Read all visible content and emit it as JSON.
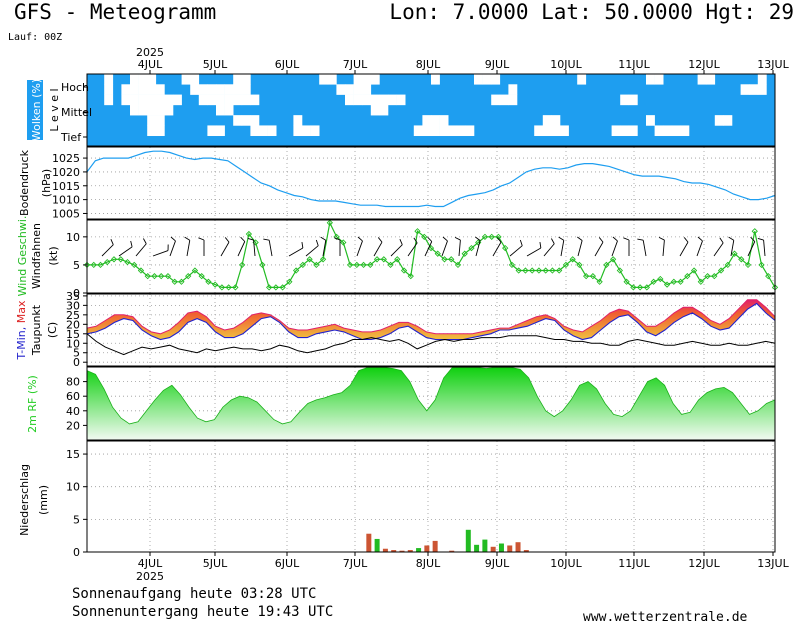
{
  "header": {
    "title": "GFS - Meteogramm",
    "coords": "Lon: 7.0000  Lat: 50.0000  Hgt: 29",
    "run": "Lauf: 00Z"
  },
  "footer": {
    "sunrise": "Sonnenaufgang heute 03:28 UTC",
    "sunset": "Sonnenuntergang heute 19:43 UTC",
    "credit": "www.wetterzentrale.de"
  },
  "colors": {
    "cloud": "#1e9ef0",
    "pressure": "#1e9ef0",
    "wind": "#22bb22",
    "tmin": "#2222cc",
    "tmax": "#dd2222",
    "tmax_fill_low": "#f0c040",
    "tmax_fill_high": "#e0206a",
    "rh": "#22cc22",
    "precip_conv": "#22bb22",
    "precip_total": "#cc5533"
  },
  "chart_data": [
    {
      "type": "heatmap",
      "id": "clouds",
      "ylabel": "Wolken (%)",
      "ylabel2": "L e v e l",
      "levels": [
        "Hoch",
        "Mittel",
        "Tief"
      ],
      "x_ticks": [
        "4JUL",
        "5JUL",
        "6JUL",
        "7JUL",
        "8JUL",
        "9JUL",
        "10JUL",
        "11JUL",
        "12JUL",
        "13JUL"
      ],
      "x_year": "2025",
      "rows": [
        [
          1,
          1,
          0,
          1,
          1,
          0,
          0,
          0,
          1,
          1,
          1,
          0,
          0,
          1,
          1,
          1,
          1,
          0,
          0,
          1,
          1,
          1,
          1,
          1,
          1,
          1,
          1,
          0,
          0,
          1,
          1,
          0,
          0,
          0,
          1,
          1,
          1,
          1,
          1,
          1,
          0,
          1,
          1,
          1,
          1,
          0,
          0,
          0,
          1,
          1,
          1,
          1,
          1,
          1,
          1,
          1,
          1,
          0,
          1,
          1,
          1,
          1,
          1,
          1,
          1,
          0,
          0,
          1,
          1,
          1,
          1,
          0,
          0,
          1,
          1,
          1,
          1,
          1,
          0,
          1
        ],
        [
          1,
          1,
          0,
          1,
          0,
          0,
          0,
          0,
          0,
          1,
          1,
          1,
          0,
          0,
          0,
          0,
          0,
          0,
          0,
          1,
          1,
          1,
          1,
          1,
          1,
          1,
          1,
          1,
          1,
          0,
          0,
          0,
          0,
          1,
          1,
          1,
          1,
          1,
          1,
          1,
          1,
          1,
          1,
          1,
          1,
          1,
          1,
          1,
          1,
          0,
          1,
          1,
          1,
          1,
          1,
          1,
          1,
          1,
          1,
          1,
          1,
          1,
          1,
          1,
          1,
          1,
          1,
          1,
          1,
          1,
          1,
          1,
          1,
          1,
          1,
          1,
          0,
          0,
          0,
          1
        ],
        [
          1,
          1,
          0,
          1,
          0,
          0,
          0,
          0,
          0,
          0,
          0,
          1,
          1,
          0,
          0,
          0,
          0,
          0,
          0,
          0,
          1,
          1,
          1,
          1,
          1,
          1,
          1,
          1,
          1,
          1,
          0,
          0,
          0,
          0,
          0,
          0,
          0,
          1,
          1,
          1,
          1,
          1,
          1,
          1,
          1,
          1,
          1,
          0,
          0,
          0,
          1,
          1,
          1,
          1,
          1,
          1,
          1,
          1,
          1,
          1,
          1,
          1,
          0,
          0,
          1,
          1,
          1,
          1,
          1,
          1,
          1,
          1,
          1,
          1,
          1,
          1,
          1,
          1,
          1,
          1
        ],
        [
          1,
          1,
          1,
          1,
          1,
          0,
          0,
          0,
          0,
          0,
          1,
          1,
          1,
          1,
          1,
          0,
          0,
          1,
          1,
          1,
          1,
          1,
          1,
          1,
          1,
          1,
          1,
          1,
          1,
          1,
          1,
          1,
          1,
          0,
          0,
          1,
          1,
          1,
          1,
          1,
          1,
          1,
          1,
          1,
          1,
          1,
          1,
          1,
          1,
          1,
          1,
          1,
          1,
          1,
          1,
          1,
          1,
          1,
          1,
          1,
          1,
          1,
          1,
          1,
          1,
          1,
          1,
          1,
          1,
          1,
          1,
          1,
          1,
          1,
          1,
          1,
          1,
          1,
          1,
          1
        ],
        [
          1,
          1,
          1,
          1,
          1,
          1,
          1,
          0,
          0,
          1,
          1,
          1,
          1,
          1,
          1,
          1,
          1,
          0,
          0,
          0,
          1,
          1,
          1,
          1,
          0,
          1,
          1,
          1,
          1,
          1,
          1,
          1,
          1,
          1,
          1,
          1,
          1,
          1,
          1,
          0,
          0,
          0,
          1,
          1,
          1,
          1,
          1,
          1,
          1,
          1,
          1,
          1,
          1,
          0,
          0,
          1,
          1,
          1,
          1,
          1,
          1,
          1,
          1,
          1,
          1,
          0,
          1,
          1,
          1,
          1,
          1,
          1,
          1,
          0,
          0,
          1,
          1,
          1,
          1,
          1
        ],
        [
          1,
          1,
          1,
          1,
          1,
          1,
          1,
          0,
          0,
          1,
          1,
          1,
          1,
          1,
          0,
          0,
          1,
          1,
          1,
          0,
          0,
          0,
          1,
          1,
          0,
          0,
          0,
          1,
          1,
          1,
          1,
          1,
          1,
          1,
          1,
          1,
          1,
          1,
          0,
          0,
          0,
          0,
          0,
          0,
          0,
          1,
          1,
          1,
          1,
          1,
          1,
          1,
          0,
          0,
          0,
          0,
          1,
          1,
          1,
          1,
          1,
          0,
          0,
          0,
          1,
          1,
          0,
          0,
          0,
          0,
          1,
          1,
          1,
          1,
          1,
          1,
          1,
          1,
          1,
          1
        ],
        [
          1,
          1,
          1,
          1,
          1,
          1,
          1,
          1,
          1,
          1,
          1,
          1,
          1,
          1,
          1,
          1,
          1,
          1,
          1,
          1,
          1,
          1,
          1,
          1,
          1,
          1,
          1,
          1,
          1,
          1,
          1,
          1,
          1,
          1,
          1,
          1,
          1,
          1,
          1,
          1,
          1,
          1,
          1,
          1,
          1,
          1,
          1,
          1,
          1,
          1,
          1,
          1,
          1,
          1,
          1,
          1,
          1,
          1,
          1,
          1,
          1,
          1,
          1,
          1,
          1,
          1,
          1,
          1,
          1,
          1,
          1,
          1,
          1,
          1,
          1,
          1,
          1,
          1,
          1,
          1
        ]
      ]
    },
    {
      "type": "line",
      "id": "pressure",
      "ylabel": "Bodendruck",
      "unit": "(hPa)",
      "yticks": [
        1005,
        1010,
        1015,
        1020,
        1025
      ],
      "ylim": [
        1003,
        1029
      ],
      "values": [
        1020,
        1024,
        1025,
        1025,
        1025,
        1025,
        1026,
        1027,
        1027.5,
        1027.5,
        1027,
        1026,
        1025,
        1024.5,
        1025,
        1025,
        1024.5,
        1024,
        1022,
        1020,
        1018,
        1016,
        1015,
        1013.5,
        1012.5,
        1011.5,
        1011,
        1010,
        1009.5,
        1009.5,
        1009.5,
        1009,
        1008.5,
        1008,
        1008,
        1008,
        1007.5,
        1007.5,
        1007.5,
        1007.5,
        1007.5,
        1008,
        1007.5,
        1007.5,
        1009,
        1010.5,
        1011.5,
        1012,
        1012.5,
        1013.5,
        1015,
        1016,
        1018,
        1020,
        1021,
        1021.5,
        1021.5,
        1021,
        1021.5,
        1022.5,
        1023,
        1023,
        1022.5,
        1022,
        1021,
        1020,
        1019,
        1018.5,
        1018.5,
        1018.5,
        1018,
        1017.5,
        1016.5,
        1016,
        1016,
        1015.5,
        1014.5,
        1013.5,
        1012,
        1011,
        1010,
        1010,
        1010.5,
        1011.5
      ]
    },
    {
      "type": "line",
      "id": "wind",
      "ylabel": "Wind Geschwi.",
      "ylabel2": "Windfahnen",
      "unit": "(kt)",
      "yticks": [
        0,
        5,
        10
      ],
      "ylim": [
        0,
        13
      ],
      "values": [
        5,
        5,
        5,
        5.5,
        6,
        6,
        5.5,
        5,
        4,
        3,
        3,
        3,
        3,
        2,
        2,
        3,
        4,
        3,
        2,
        1.5,
        1,
        1,
        1,
        5,
        10.5,
        9,
        5,
        1,
        1,
        1,
        2,
        4,
        5,
        6,
        5,
        6,
        12.5,
        10,
        9,
        5,
        5,
        5,
        5,
        6,
        6,
        5,
        6,
        4,
        3,
        11,
        10,
        8,
        7,
        6,
        6,
        5,
        7,
        8,
        9,
        10,
        10,
        10,
        8,
        5,
        4,
        4,
        4,
        4,
        4,
        4,
        4,
        5,
        6,
        5,
        3,
        3,
        2,
        5,
        6,
        4,
        2,
        1,
        1,
        1,
        2,
        2.5,
        1.5,
        2,
        2,
        3,
        4,
        2,
        3,
        3,
        4,
        5,
        7,
        6,
        5,
        11,
        5,
        3,
        1
      ],
      "barb_dirs": [
        45,
        35,
        50,
        20,
        70,
        80,
        90,
        60,
        65,
        95,
        100,
        30,
        40,
        80,
        90,
        70,
        60,
        45,
        55,
        65,
        70,
        85,
        75,
        60,
        40,
        30,
        50,
        80,
        75,
        60,
        70,
        90,
        100,
        85,
        60,
        70,
        55,
        80,
        65,
        95
      ]
    },
    {
      "type": "area",
      "id": "temperature",
      "ylabel": "T-Min, Max",
      "ylabel2": "Taupunkt",
      "unit": "(C)",
      "series_names": [
        "T-Min",
        "Max",
        "Taupunkt"
      ],
      "yticks": [
        0,
        5,
        10,
        15,
        20,
        25,
        30,
        35
      ],
      "ylim": [
        -2,
        36
      ],
      "tmin": [
        15,
        16,
        18,
        21,
        23,
        22,
        17,
        14,
        12,
        13,
        16,
        21,
        23,
        21,
        16,
        13,
        13,
        15,
        19,
        23,
        24,
        21,
        16,
        13,
        13,
        15,
        16,
        17,
        16,
        14,
        12,
        12,
        13,
        15,
        18,
        19,
        16,
        13,
        12,
        12,
        12,
        12,
        13,
        14,
        15,
        17,
        17,
        18,
        19,
        21,
        23,
        22,
        17,
        14,
        12,
        13,
        17,
        21,
        24,
        25,
        21,
        16,
        14,
        17,
        21,
        24,
        26,
        23,
        19,
        17,
        18,
        23,
        28,
        31,
        26,
        22
      ],
      "tmax": [
        18,
        19,
        22,
        25,
        25,
        24,
        19,
        16,
        15,
        17,
        21,
        26,
        27,
        24,
        19,
        17,
        18,
        21,
        25,
        26,
        25,
        22,
        18,
        17,
        17,
        18,
        19,
        20,
        18,
        17,
        16,
        16,
        17,
        19,
        21,
        21,
        19,
        16,
        15,
        15,
        15,
        15,
        15,
        16,
        17,
        18,
        18,
        20,
        22,
        24,
        25,
        23,
        19,
        17,
        16,
        19,
        22,
        26,
        28,
        27,
        23,
        19,
        19,
        22,
        26,
        29,
        29,
        26,
        22,
        20,
        23,
        28,
        33,
        33,
        29,
        24
      ],
      "dewpoint": [
        15,
        11,
        8,
        6,
        4,
        6,
        8,
        7,
        8,
        9,
        7,
        6,
        5,
        7,
        6,
        7,
        8,
        7,
        7,
        6,
        7,
        9,
        8,
        6,
        5,
        6,
        7,
        9,
        10,
        12,
        12,
        13,
        12,
        11,
        12,
        10,
        7,
        9,
        11,
        12,
        11,
        12,
        12,
        13,
        13,
        13,
        14,
        14,
        14,
        14,
        13,
        12,
        12,
        11,
        11,
        10,
        10,
        9,
        9,
        11,
        12,
        11,
        10,
        9,
        9,
        10,
        11,
        10,
        9,
        9,
        10,
        9,
        9,
        10,
        11,
        10
      ]
    },
    {
      "type": "area",
      "id": "rh",
      "ylabel": "2m RF (%)",
      "yticks": [
        20,
        40,
        60,
        80
      ],
      "ylim": [
        0,
        100
      ],
      "values": [
        95,
        90,
        70,
        45,
        30,
        22,
        25,
        40,
        55,
        68,
        75,
        62,
        45,
        30,
        25,
        28,
        45,
        55,
        60,
        58,
        52,
        40,
        28,
        22,
        25,
        38,
        50,
        55,
        58,
        62,
        65,
        75,
        95,
        99,
        99,
        99,
        98,
        95,
        80,
        55,
        40,
        55,
        85,
        99,
        99,
        99,
        99,
        98,
        99,
        99,
        99,
        97,
        85,
        60,
        40,
        32,
        40,
        55,
        75,
        80,
        70,
        50,
        35,
        32,
        40,
        60,
        80,
        85,
        75,
        50,
        35,
        38,
        55,
        65,
        70,
        72,
        65,
        50,
        35,
        40,
        50,
        55
      ]
    },
    {
      "type": "bar",
      "id": "precip",
      "ylabel": "Niederschlag",
      "unit": "(mm)",
      "yticks": [
        0,
        5,
        10,
        15
      ],
      "ylim": [
        0,
        17
      ],
      "bars": [
        {
          "i": 34,
          "total": 2.8,
          "conv": 0
        },
        {
          "i": 35,
          "total": 0,
          "conv": 2.0
        },
        {
          "i": 36,
          "total": 0.5,
          "conv": 0
        },
        {
          "i": 37,
          "total": 0.3,
          "conv": 0
        },
        {
          "i": 38,
          "total": 0.2,
          "conv": 0
        },
        {
          "i": 39,
          "total": 0.3,
          "conv": 0
        },
        {
          "i": 40,
          "total": 0,
          "conv": 0.6
        },
        {
          "i": 41,
          "total": 1.0,
          "conv": 0
        },
        {
          "i": 42,
          "total": 1.7,
          "conv": 0
        },
        {
          "i": 44,
          "total": 0.2,
          "conv": 0
        },
        {
          "i": 46,
          "total": 0,
          "conv": 3.4
        },
        {
          "i": 47,
          "total": 0,
          "conv": 1.1
        },
        {
          "i": 48,
          "total": 0,
          "conv": 1.9
        },
        {
          "i": 49,
          "total": 0.8,
          "conv": 0
        },
        {
          "i": 50,
          "total": 0,
          "conv": 1.3
        },
        {
          "i": 51,
          "total": 1.0,
          "conv": 0
        },
        {
          "i": 52,
          "total": 1.5,
          "conv": 0
        },
        {
          "i": 53,
          "total": 0.3,
          "conv": 0
        }
      ]
    }
  ]
}
